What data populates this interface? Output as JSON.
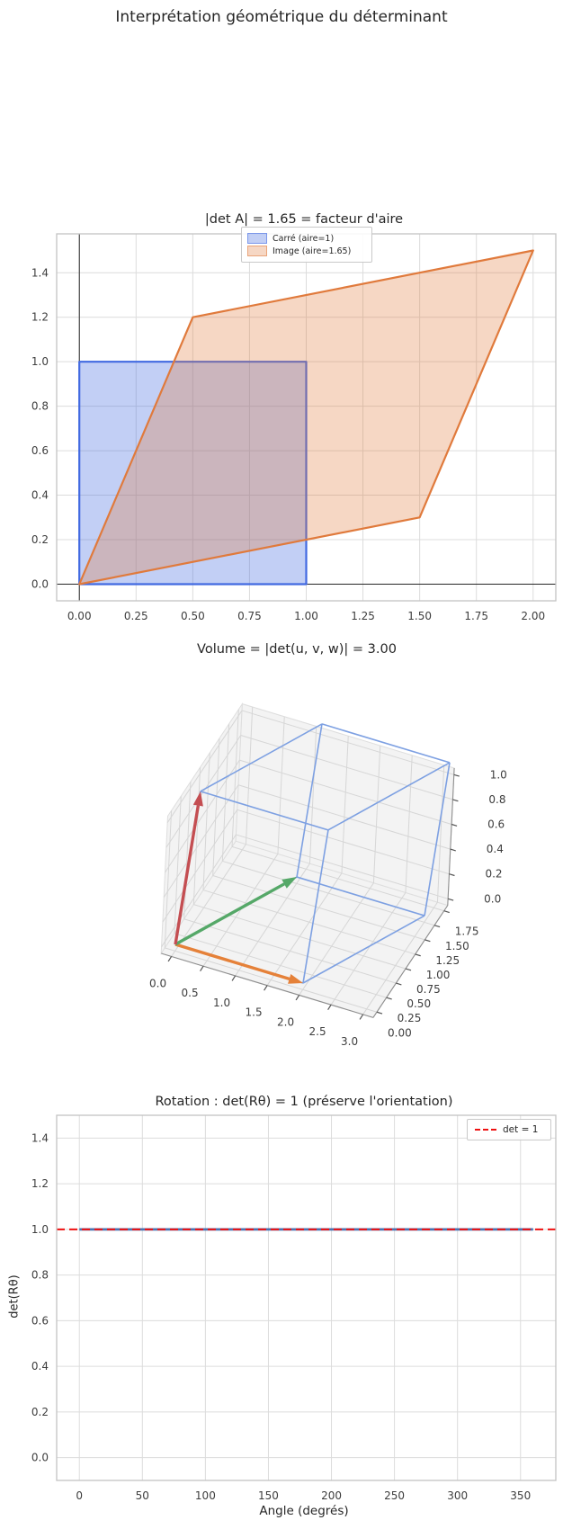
{
  "figure": {
    "suptitle": "Interprétation géométrique du déterminant"
  },
  "colors": {
    "square_edge": "#4169e1",
    "square_fill": "rgba(65,105,225,0.32)",
    "image_edge": "#e07a3c",
    "image_fill": "rgba(224,122,60,0.30)",
    "box": "#7da0e2",
    "vector_u": "#e58139",
    "vector_v": "#55a868",
    "vector_w": "#c44e52",
    "det_line": "#4c72b0",
    "det_dashed": "#ee1111",
    "grid": "#dcdcdc",
    "frame": "#c4c4c4",
    "axline": "#262626",
    "pane": "#f0f0f0",
    "pane_grid": "#d6d6d6",
    "axis3d_edge": "#8f8f8f",
    "tick_mark": "#555555",
    "tick_text": "#3d3d3d",
    "title_text": "#262626"
  },
  "chart_data": [
    {
      "type": "area",
      "title": "|det A| = 1.65 = facteur d'aire",
      "xlim": [
        -0.1,
        2.1
      ],
      "ylim": [
        -0.075,
        1.575
      ],
      "xticks": [
        0,
        0.25,
        0.5,
        0.75,
        1,
        1.25,
        1.5,
        1.75,
        2
      ],
      "xtick_labels": [
        "0.00",
        "0.25",
        "0.50",
        "0.75",
        "1.00",
        "1.25",
        "1.50",
        "1.75",
        "2.00"
      ],
      "yticks": [
        0,
        0.2,
        0.4,
        0.6,
        0.8,
        1,
        1.2,
        1.4
      ],
      "ytick_labels": [
        "0.0",
        "0.2",
        "0.4",
        "0.6",
        "0.8",
        "1.0",
        "1.2",
        "1.4"
      ],
      "axhline": 0,
      "axvline": 0,
      "grid": true,
      "legend_position": "upper center",
      "series": [
        {
          "name": "Carré (aire=1)",
          "points": [
            [
              0,
              0
            ],
            [
              1,
              0
            ],
            [
              1,
              1
            ],
            [
              0,
              1
            ]
          ]
        },
        {
          "name": "Image (aire=1.65)",
          "points": [
            [
              0,
              0
            ],
            [
              1.5,
              0.3
            ],
            [
              2,
              1.5
            ],
            [
              0.5,
              1.2
            ]
          ]
        }
      ]
    },
    {
      "type": "parallelepiped-3d",
      "title": "Volume = |det(u, v, w)| = 3.00",
      "vectors": {
        "u": [
          2,
          0,
          0
        ],
        "v": [
          1,
          1.5,
          0
        ],
        "w": [
          0,
          0.5,
          1
        ]
      },
      "xticks": {
        "values": [
          0,
          0.5,
          1,
          1.5,
          2,
          2.5,
          3
        ],
        "labels": [
          "0.0",
          "0.5",
          "1.0",
          "1.5",
          "2.0",
          "2.5",
          "3.0"
        ]
      },
      "yticks": {
        "values": [
          0,
          0.25,
          0.5,
          0.75,
          1,
          1.25,
          1.5,
          1.75
        ],
        "labels": [
          "0.00",
          "0.25",
          "0.50",
          "0.75",
          "1.00",
          "1.25",
          "1.50",
          "1.75"
        ]
      },
      "zticks": {
        "values": [
          0,
          0.2,
          0.4,
          0.6,
          0.8,
          1
        ],
        "labels": [
          "0.0",
          "0.2",
          "0.4",
          "0.6",
          "0.8",
          "1.0"
        ]
      }
    },
    {
      "type": "line",
      "title": "Rotation : det(Rθ) = 1 (préserve l'orientation)",
      "xlabel": "Angle (degrés)",
      "ylabel": "det(Rθ)",
      "legend_label": "det = 1",
      "legend_position": "upper right",
      "xlim": [
        -18,
        378
      ],
      "ylim": [
        -0.1,
        1.5
      ],
      "xticks": [
        0,
        50,
        100,
        150,
        200,
        250,
        300,
        350
      ],
      "xtick_labels": [
        "0",
        "50",
        "100",
        "150",
        "200",
        "250",
        "300",
        "350"
      ],
      "yticks": [
        0,
        0.2,
        0.4,
        0.6,
        0.8,
        1,
        1.2,
        1.4
      ],
      "ytick_labels": [
        "0.0",
        "0.2",
        "0.4",
        "0.6",
        "0.8",
        "1.0",
        "1.2",
        "1.4"
      ],
      "grid": true,
      "series": [
        {
          "name": "det(Rθ)",
          "style": "solid-blue",
          "y": 1.0,
          "x_range": [
            0,
            360
          ]
        },
        {
          "name": "det = 1",
          "style": "dashed-red",
          "y": 1.0,
          "x_range": [
            -18,
            378
          ]
        }
      ]
    }
  ]
}
